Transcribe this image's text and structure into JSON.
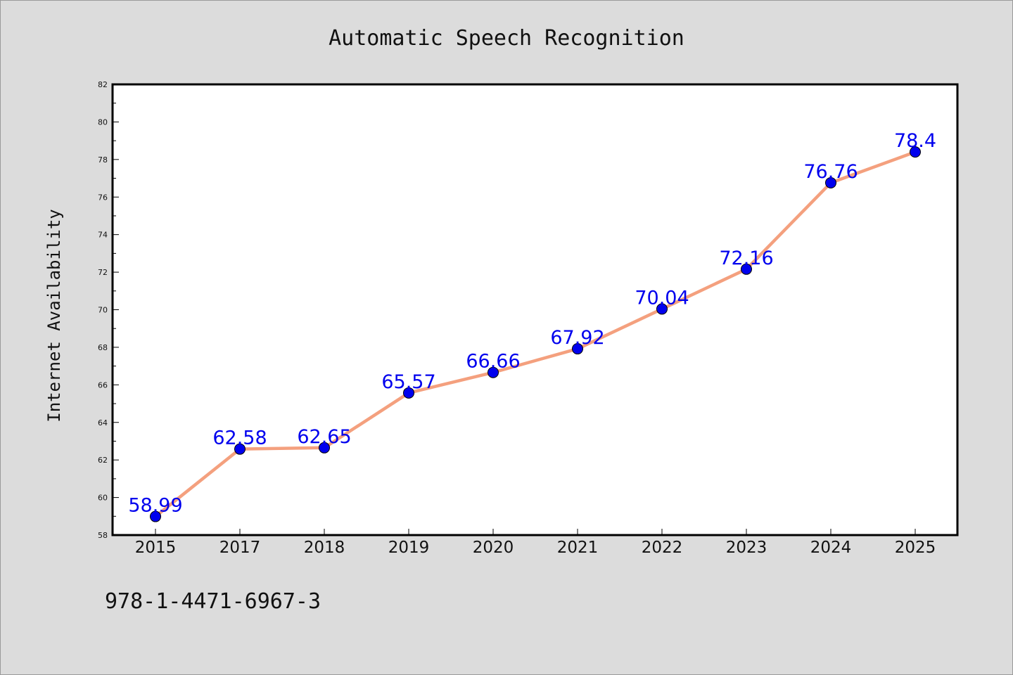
{
  "chart_data": {
    "type": "line",
    "title": "Automatic Speech Recognition",
    "xlabel": "",
    "ylabel": "Internet Availability",
    "categories": [
      "2015",
      "2017",
      "2018",
      "2019",
      "2020",
      "2021",
      "2022",
      "2023",
      "2024",
      "2025"
    ],
    "series": [
      {
        "values": [
          58.99,
          62.58,
          62.65,
          65.57,
          66.66,
          67.92,
          70.04,
          72.16,
          76.76,
          78.4
        ],
        "data_labels": [
          "58.99",
          "62.58",
          "62.65",
          "65.57",
          "66.66",
          "67.92",
          "70.04",
          "72.16",
          "76.76",
          "78.4"
        ],
        "line_color": "#f4a07e",
        "marker_color": "#0000ee"
      }
    ],
    "ylim": [
      58,
      82
    ],
    "yticks": [
      "58",
      "60",
      "62",
      "64",
      "66",
      "68",
      "70",
      "72",
      "74",
      "76",
      "78",
      "80",
      "82"
    ],
    "grid": false,
    "legend": "none",
    "label_color": "#0000ee"
  },
  "footer": {
    "isbn": "978-1-4471-6967-3"
  }
}
